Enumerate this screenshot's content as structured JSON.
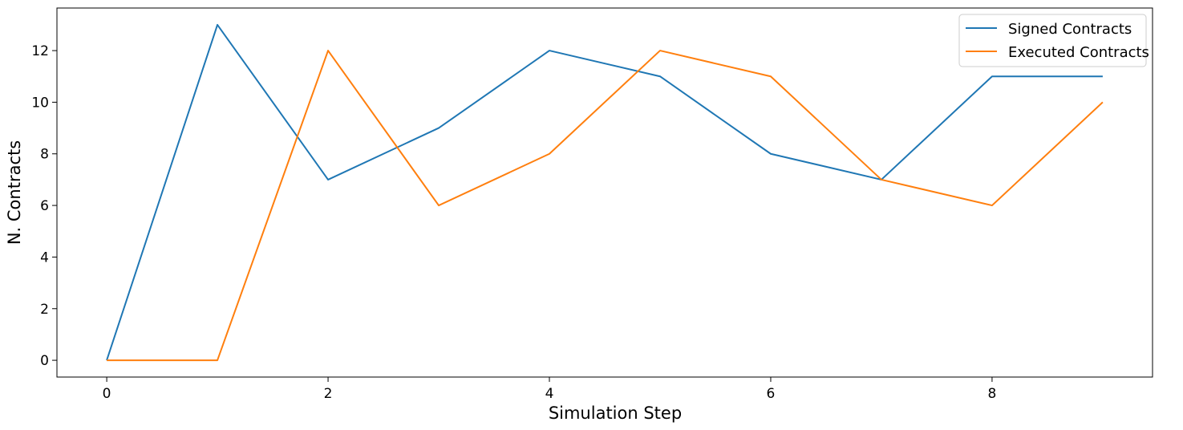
{
  "chart_data": {
    "type": "line",
    "xlabel": "Simulation Step",
    "ylabel": "N. Contracts",
    "x": [
      0,
      1,
      2,
      3,
      4,
      5,
      6,
      7,
      8,
      9
    ],
    "xlim": [
      -0.45,
      9.45
    ],
    "ylim": [
      -0.65,
      13.65
    ],
    "xticks": [
      0,
      2,
      4,
      6,
      8
    ],
    "yticks": [
      0,
      2,
      4,
      6,
      8,
      10,
      12
    ],
    "grid": false,
    "legend_position": "top-right",
    "series": [
      {
        "name": "Signed Contracts",
        "color": "#1f77b4",
        "values": [
          0,
          13,
          7,
          9,
          12,
          11,
          8,
          7,
          11,
          11
        ]
      },
      {
        "name": "Executed Contracts",
        "color": "#ff7f0e",
        "values": [
          0,
          0,
          12,
          6,
          8,
          12,
          11,
          7,
          6,
          10
        ]
      }
    ]
  }
}
